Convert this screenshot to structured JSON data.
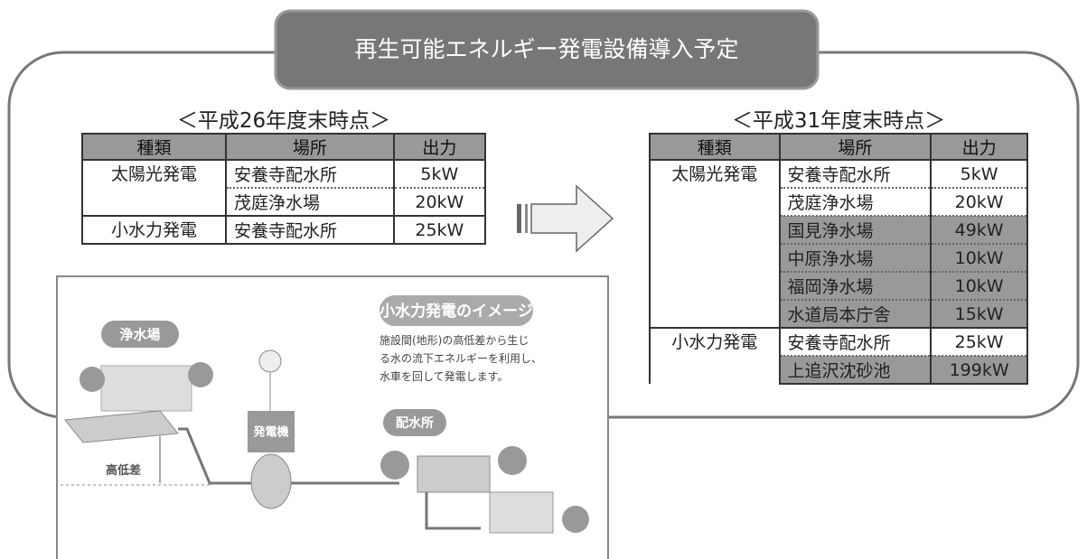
{
  "header": {
    "title": "再生可能エネルギー発電設備導入予定"
  },
  "before": {
    "heading": "＜平成26年度末時点＞",
    "columns": [
      "種類",
      "場所",
      "出力"
    ],
    "groups": [
      {
        "type": "太陽光発電",
        "sites": [
          {
            "place": "安養寺配水所",
            "output": "5kW"
          },
          {
            "place": "茂庭浄水場",
            "output": "20kW"
          }
        ]
      },
      {
        "type": "小水力発電",
        "sites": [
          {
            "place": "安養寺配水所",
            "output": "25kW"
          }
        ]
      }
    ]
  },
  "after": {
    "heading": "＜平成31年度末時点＞",
    "columns": [
      "種類",
      "場所",
      "出力"
    ],
    "groups": [
      {
        "type": "太陽光発電",
        "sites": [
          {
            "place": "安養寺配水所",
            "output": "5kW"
          },
          {
            "place": "茂庭浄水場",
            "output": "20kW"
          },
          {
            "place": "国見浄水場",
            "output": "49kW"
          },
          {
            "place": "中原浄水場",
            "output": "10kW"
          },
          {
            "place": "福岡浄水場",
            "output": "10kW"
          },
          {
            "place": "水道局本庁舎",
            "output": "15kW"
          }
        ]
      },
      {
        "type": "小水力発電",
        "sites": [
          {
            "place": "安養寺配水所",
            "output": "25kW"
          },
          {
            "place": "上追沢沈砂池",
            "output": "199kW"
          }
        ]
      }
    ]
  },
  "illustration": {
    "title": "小水力発電のイメージ",
    "description": [
      "施設間(地形)の高低差から生じ",
      "る水の流下エネルギーを利用し、",
      "水車を回して発電します。"
    ],
    "labels": {
      "plant": "浄水場",
      "generator": "発電機",
      "reservoir": "配水所",
      "height": "高低差"
    }
  }
}
